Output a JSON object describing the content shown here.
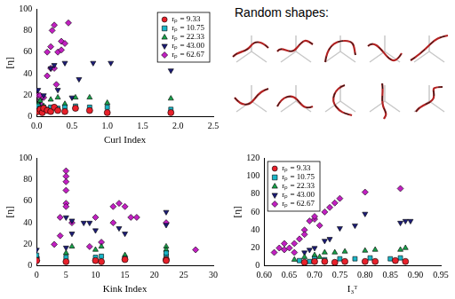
{
  "chart_data": [
    {
      "type": "scatter",
      "x_label": "Curl Index",
      "y_label": "[η]",
      "xlim": [
        0,
        2.5
      ],
      "xticks": [
        {
          "value": 0,
          "label": "0.0"
        },
        {
          "value": 0.5,
          "label": "0.5"
        },
        {
          "value": 1,
          "label": "1.0"
        },
        {
          "value": 1.5,
          "label": "1.5"
        },
        {
          "value": 2,
          "label": "2.0"
        },
        {
          "value": 2.5,
          "label": "2.5"
        }
      ],
      "ylim": [
        0,
        100
      ],
      "yticks": [
        0,
        20,
        40,
        60,
        80,
        100
      ],
      "grid": false,
      "legend": "upper right",
      "series": [
        {
          "name": "rₚ = 9.33",
          "color": "#e8202a",
          "marker": "circle",
          "x": [
            0.02,
            0.05,
            0.08,
            0.1,
            0.15,
            0.2,
            0.25,
            0.3,
            0.4,
            0.55,
            0.75,
            1.0,
            1.9
          ],
          "values": [
            5,
            7,
            4,
            8,
            6,
            5,
            9,
            6,
            5,
            8,
            6,
            4,
            4
          ]
        },
        {
          "name": "rₚ = 10.75",
          "color": "#19b6c8",
          "marker": "square",
          "x": [
            0.02,
            0.05,
            0.1,
            0.15,
            0.2,
            0.3,
            0.4,
            0.55,
            0.75,
            1.0,
            1.9
          ],
          "values": [
            10,
            8,
            9,
            7,
            9,
            8,
            9,
            10,
            9,
            9,
            7
          ]
        },
        {
          "name": "rₚ = 22.33",
          "color": "#17a34a",
          "marker": "triangle",
          "x": [
            0.02,
            0.05,
            0.1,
            0.2,
            0.3,
            0.4,
            0.55,
            0.75,
            1.0,
            1.9
          ],
          "values": [
            12,
            15,
            10,
            16,
            18,
            12,
            18,
            18,
            13,
            17
          ]
        },
        {
          "name": "rₚ = 43.00",
          "color": "#1c1c78",
          "marker": "triangle-down",
          "x": [
            0.02,
            0.05,
            0.1,
            0.2,
            0.25,
            0.3,
            0.4,
            0.5,
            0.6,
            0.8,
            1.05,
            1.9
          ],
          "values": [
            25,
            15,
            20,
            45,
            48,
            25,
            50,
            18,
            35,
            50,
            50,
            43
          ]
        },
        {
          "name": "rₚ = 62.67",
          "color": "#c21fc2",
          "marker": "diamond",
          "x": [
            0.02,
            0.05,
            0.05,
            0.1,
            0.1,
            0.15,
            0.15,
            0.2,
            0.2,
            0.22,
            0.25,
            0.25,
            0.28,
            0.3,
            0.35,
            0.35,
            0.4,
            0.45
          ],
          "values": [
            20,
            20,
            12,
            18,
            8,
            38,
            60,
            45,
            65,
            80,
            85,
            45,
            30,
            60,
            70,
            62,
            68,
            87
          ]
        }
      ]
    },
    {
      "type": "scatter",
      "x_label": "Kink Index",
      "y_label": "[η]",
      "xlim": [
        0,
        30
      ],
      "xticks": [
        0,
        5,
        10,
        15,
        20,
        25,
        30
      ],
      "ylim": [
        0,
        100
      ],
      "yticks": [
        0,
        20,
        40,
        60,
        80,
        100
      ],
      "grid": false,
      "series": [
        {
          "name": "rₚ = 9.33",
          "color": "#e8202a",
          "marker": "circle",
          "x": [
            0,
            5,
            10,
            11,
            15,
            22,
            22
          ],
          "values": [
            5,
            4,
            5,
            4,
            6,
            6,
            5
          ]
        },
        {
          "name": "rₚ = 10.75",
          "color": "#19b6c8",
          "marker": "square",
          "x": [
            0,
            5,
            10,
            11,
            15,
            22,
            22
          ],
          "values": [
            10,
            8,
            8,
            9,
            7,
            9,
            12
          ]
        },
        {
          "name": "rₚ = 22.33",
          "color": "#17a34a",
          "marker": "triangle",
          "x": [
            0,
            5,
            6,
            10,
            11,
            15,
            22,
            22
          ],
          "values": [
            8,
            12,
            18,
            15,
            18,
            10,
            18,
            15
          ]
        },
        {
          "name": "rₚ = 43.00",
          "color": "#1c1c78",
          "marker": "triangle-down",
          "x": [
            0,
            5,
            5,
            6,
            6,
            8,
            9,
            10,
            14,
            15,
            22,
            22
          ],
          "values": [
            15,
            45,
            17,
            30,
            42,
            40,
            40,
            33,
            35,
            30,
            50,
            38
          ]
        },
        {
          "name": "rₚ = 62.67",
          "color": "#c21fc2",
          "marker": "diamond",
          "x": [
            0,
            0,
            3,
            4,
            4,
            5,
            5,
            5,
            5,
            5,
            5,
            6,
            9,
            10,
            11,
            13,
            13,
            14,
            15,
            16,
            17,
            22,
            27
          ],
          "values": [
            8,
            5,
            20,
            28,
            45,
            88,
            83,
            78,
            70,
            58,
            55,
            40,
            18,
            45,
            22,
            55,
            40,
            58,
            55,
            45,
            45,
            40,
            15
          ]
        }
      ]
    },
    {
      "type": "scatter",
      "x_label": "I₃ᵀ",
      "y_label": "[η]",
      "xlim": [
        0.6,
        0.95
      ],
      "xticks": [
        {
          "value": 0.6,
          "label": "0.60"
        },
        {
          "value": 0.65,
          "label": "0.65"
        },
        {
          "value": 0.7,
          "label": "0.70"
        },
        {
          "value": 0.75,
          "label": "0.75"
        },
        {
          "value": 0.8,
          "label": "0.80"
        },
        {
          "value": 0.85,
          "label": "0.85"
        },
        {
          "value": 0.9,
          "label": "0.90"
        },
        {
          "value": 0.95,
          "label": "0.95"
        }
      ],
      "ylim": [
        0,
        120
      ],
      "yticks": [
        0,
        20,
        40,
        60,
        80,
        100,
        120
      ],
      "grid": false,
      "legend": "upper left",
      "series": [
        {
          "name": "rₚ = 9.33",
          "color": "#e8202a",
          "marker": "circle",
          "x": [
            0.68,
            0.7,
            0.72,
            0.74,
            0.76,
            0.8,
            0.82,
            0.86,
            0.88
          ],
          "values": [
            4,
            5,
            5,
            4,
            5,
            5,
            5,
            6,
            5
          ]
        },
        {
          "name": "rₚ = 10.75",
          "color": "#19b6c8",
          "marker": "square",
          "x": [
            0.67,
            0.69,
            0.7,
            0.72,
            0.75,
            0.78,
            0.81,
            0.85,
            0.87
          ],
          "values": [
            6,
            5,
            8,
            7,
            8,
            8,
            9,
            8,
            9
          ]
        },
        {
          "name": "rₚ = 22.33",
          "color": "#17a34a",
          "marker": "triangle",
          "x": [
            0.66,
            0.68,
            0.7,
            0.71,
            0.72,
            0.74,
            0.76,
            0.8,
            0.82,
            0.87,
            0.88
          ],
          "values": [
            7,
            10,
            12,
            10,
            15,
            15,
            16,
            17,
            18,
            18,
            20
          ]
        },
        {
          "name": "rₚ = 43.00",
          "color": "#1c1c78",
          "marker": "triangle-down",
          "x": [
            0.68,
            0.69,
            0.7,
            0.72,
            0.73,
            0.75,
            0.78,
            0.8,
            0.87,
            0.88,
            0.89
          ],
          "values": [
            15,
            18,
            20,
            28,
            30,
            42,
            45,
            58,
            48,
            50,
            50
          ]
        },
        {
          "name": "rₚ = 62.67",
          "color": "#c21fc2",
          "marker": "diamond",
          "x": [
            0.62,
            0.63,
            0.64,
            0.64,
            0.65,
            0.66,
            0.66,
            0.67,
            0.68,
            0.68,
            0.69,
            0.7,
            0.7,
            0.71,
            0.72,
            0.73,
            0.74,
            0.75,
            0.8,
            0.87
          ],
          "values": [
            15,
            20,
            18,
            25,
            20,
            25,
            15,
            30,
            40,
            35,
            50,
            52,
            55,
            45,
            60,
            65,
            70,
            75,
            82,
            86
          ]
        }
      ]
    }
  ],
  "shapes_panel": {
    "title": "Random shapes:"
  }
}
